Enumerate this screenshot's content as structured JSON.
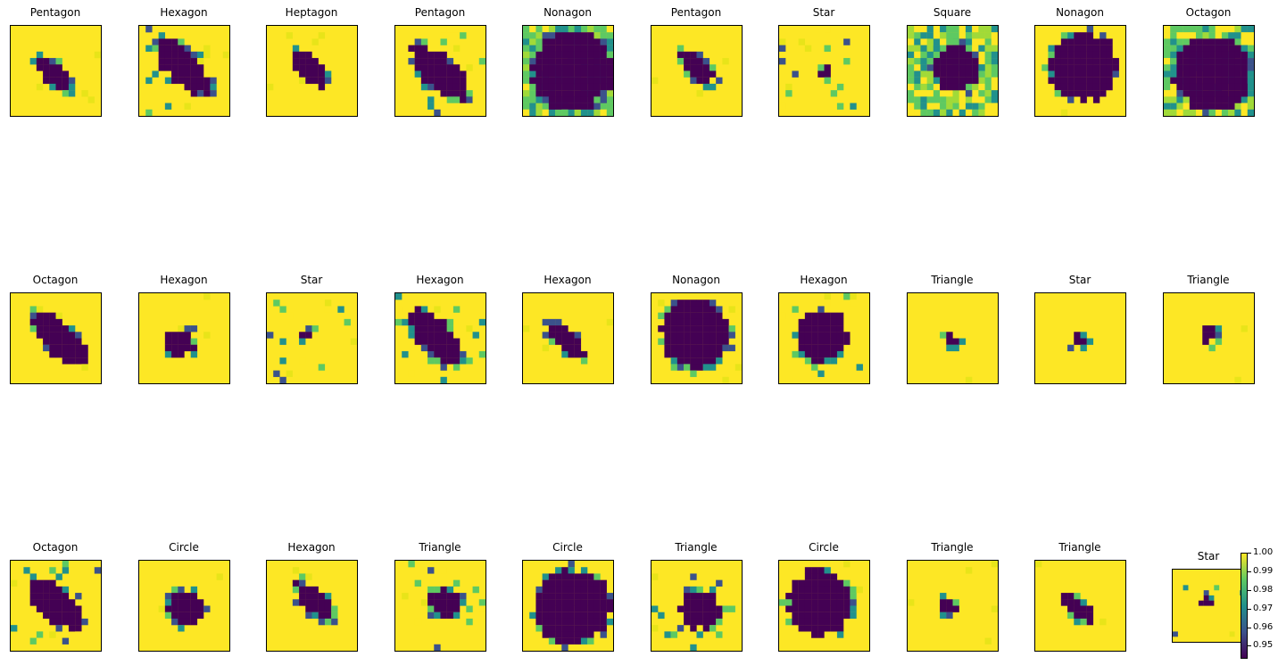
{
  "chart_data": {
    "type": "heatmap",
    "layout": "grid of image panels, 3 rows x 10 columns",
    "colormap": "viridis",
    "colors": {
      "low": "#440154",
      "mid_blue": "#3b528b",
      "mid_teal": "#21918c",
      "mid_green": "#5ec962",
      "high": "#fde725"
    },
    "grid": false,
    "axes_ticks": false,
    "panels": [
      {
        "title": "Pentagon",
        "shape": "diagonal blob",
        "coverage": 0.1
      },
      {
        "title": "Hexagon",
        "shape": "diagonal blob with speckle",
        "coverage": 0.22
      },
      {
        "title": "Heptagon",
        "shape": "small diagonal blob",
        "coverage": 0.1
      },
      {
        "title": "Pentagon",
        "shape": "diagonal blob with speckle",
        "coverage": 0.22
      },
      {
        "title": "Nonagon",
        "shape": "large blob on noisy background",
        "coverage": 0.6
      },
      {
        "title": "Pentagon",
        "shape": "thin diagonal stroke",
        "coverage": 0.08
      },
      {
        "title": "Star",
        "shape": "single dark pixel with faint speckle",
        "coverage": 0.01
      },
      {
        "title": "Square",
        "shape": "blobs on noisy background",
        "coverage": 0.2
      },
      {
        "title": "Nonagon",
        "shape": "large square blob",
        "coverage": 0.45
      },
      {
        "title": "Octagon",
        "shape": "large blob on noisy background",
        "coverage": 0.55
      },
      {
        "title": "Octagon",
        "shape": "diagonal blob",
        "coverage": 0.2
      },
      {
        "title": "Hexagon",
        "shape": "small compact blob",
        "coverage": 0.08
      },
      {
        "title": "Star",
        "shape": "single dark pixel with faint speckle",
        "coverage": 0.01
      },
      {
        "title": "Hexagon",
        "shape": "diagonal blob with speckle",
        "coverage": 0.22
      },
      {
        "title": "Hexagon",
        "shape": "small diagonal blob",
        "coverage": 0.1
      },
      {
        "title": "Nonagon",
        "shape": "large square blob",
        "coverage": 0.45
      },
      {
        "title": "Hexagon",
        "shape": "blob with speckle",
        "coverage": 0.25
      },
      {
        "title": "Triangle",
        "shape": "tiny blob",
        "coverage": 0.02
      },
      {
        "title": "Star",
        "shape": "tiny blob",
        "coverage": 0.02
      },
      {
        "title": "Triangle",
        "shape": "tiny triangle",
        "coverage": 0.02
      },
      {
        "title": "Octagon",
        "shape": "diagonal blob with speckle",
        "coverage": 0.2
      },
      {
        "title": "Circle",
        "shape": "small round blob",
        "coverage": 0.12
      },
      {
        "title": "Hexagon",
        "shape": "diagonal blob",
        "coverage": 0.12
      },
      {
        "title": "Triangle",
        "shape": "scattered speckle",
        "coverage": 0.08
      },
      {
        "title": "Circle",
        "shape": "large round blob",
        "coverage": 0.55
      },
      {
        "title": "Triangle",
        "shape": "scattered blobs",
        "coverage": 0.15
      },
      {
        "title": "Circle",
        "shape": "large round blob",
        "coverage": 0.4
      },
      {
        "title": "Triangle",
        "shape": "tiny blob",
        "coverage": 0.02
      },
      {
        "title": "Triangle",
        "shape": "small diagonal blob",
        "coverage": 0.06
      },
      {
        "title": "Star",
        "shape": "tiny speckle",
        "coverage": 0.02
      }
    ],
    "colorbar": {
      "ticks": [
        "1.00",
        "0.99",
        "0.98",
        "0.97",
        "0.96",
        "0.95"
      ],
      "range": [
        0.943,
        1.0
      ]
    }
  }
}
